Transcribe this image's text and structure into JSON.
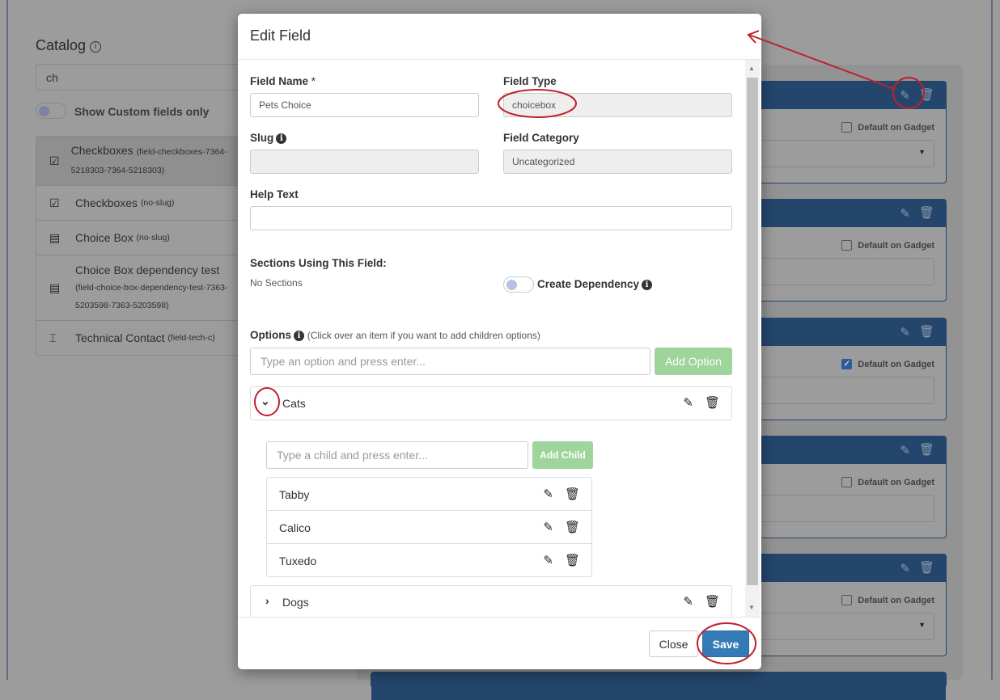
{
  "catalog": {
    "title": "Catalog",
    "search_value": "ch",
    "toggle_label": "Show Custom fields only",
    "items": [
      {
        "name": "Checkboxes",
        "slug": "(field-checkboxes-7364-5218303-7364-5218303)",
        "icon": "checkbox-icon"
      },
      {
        "name": "Checkboxes",
        "slug": "(no-slug)",
        "icon": "checkbox-icon"
      },
      {
        "name": "Choice Box",
        "slug": "(no-slug)",
        "icon": "choicebox-icon"
      },
      {
        "name": "Choice Box dependency test",
        "slug": "(field-choice-box-dependency-test-7363-5203598-7363-5203598)",
        "icon": "choicebox-icon"
      },
      {
        "name": "Technical Contact",
        "slug": "(field-tech-c)",
        "icon": "text-field-icon"
      }
    ]
  },
  "cards": [
    {
      "default_label": "Default on Gadget",
      "checked": false,
      "dropdown": true
    },
    {
      "default_label": "Default on Gadget",
      "checked": false,
      "dropdown": false
    },
    {
      "default_label": "Default on Gadget",
      "checked": true,
      "dropdown": false
    },
    {
      "default_label": "Default on Gadget",
      "checked": false,
      "dropdown": false
    },
    {
      "default_label": "Default on Gadget",
      "checked": false,
      "dropdown": true
    }
  ],
  "modal": {
    "title": "Edit Field",
    "field_name_label": "Field Name",
    "required_mark": "*",
    "field_name_value": "Pets Choice",
    "field_type_label": "Field Type",
    "field_type_value": "choicebox",
    "slug_label": "Slug",
    "slug_value": "",
    "field_category_label": "Field Category",
    "field_category_value": "Uncategorized",
    "help_text_label": "Help Text",
    "help_text_value": "",
    "sections_label": "Sections Using This Field:",
    "sections_value": "No Sections",
    "create_dependency_label": "Create Dependency",
    "options_label": "Options",
    "options_hint": "(Click over an item if you want to add children options)",
    "option_placeholder": "Type an option and press enter...",
    "add_option_label": "Add Option",
    "child_placeholder": "Type a child and press enter...",
    "add_child_label": "Add Child",
    "options": [
      {
        "label": "Cats",
        "expanded": true,
        "children": [
          "Tabby",
          "Calico",
          "Tuxedo"
        ]
      },
      {
        "label": "Dogs",
        "expanded": false,
        "children": []
      }
    ],
    "close_label": "Close",
    "save_label": "Save"
  },
  "colors": {
    "header_blue": "#24466c",
    "save_blue": "#337ab7",
    "add_green": "#9fd49a",
    "annotation_red": "#c0202a"
  }
}
